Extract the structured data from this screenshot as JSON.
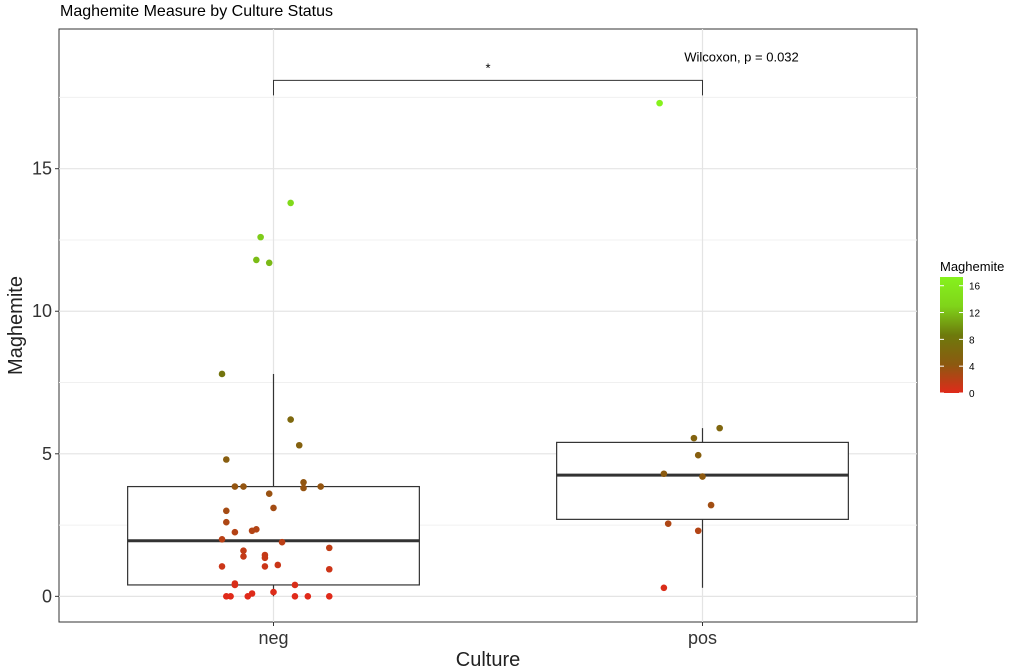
{
  "chart_data": {
    "type": "box",
    "title": "Maghemite Measure by Culture Status",
    "xlabel": "Culture",
    "ylabel": "Maghemite",
    "categories": [
      "neg",
      "pos"
    ],
    "ylim": [
      -0.9,
      19.9
    ],
    "yticks": [
      0,
      5,
      10,
      15
    ],
    "grid": true,
    "boxes": [
      {
        "category": "neg",
        "whisker_low": 0.0,
        "q1": 0.4,
        "median": 1.95,
        "q3": 3.85,
        "whisker_high": 7.8
      },
      {
        "category": "pos",
        "whisker_low": 0.3,
        "q1": 2.7,
        "median": 4.25,
        "q3": 5.4,
        "whisker_high": 5.9
      }
    ],
    "points": [
      {
        "category": "neg",
        "jitter": 0.04,
        "y": 13.8
      },
      {
        "category": "neg",
        "jitter": -0.03,
        "y": 12.6
      },
      {
        "category": "neg",
        "jitter": -0.04,
        "y": 11.8
      },
      {
        "category": "neg",
        "jitter": -0.01,
        "y": 11.7
      },
      {
        "category": "neg",
        "jitter": -0.12,
        "y": 7.8
      },
      {
        "category": "neg",
        "jitter": 0.04,
        "y": 6.2
      },
      {
        "category": "neg",
        "jitter": 0.06,
        "y": 5.3
      },
      {
        "category": "neg",
        "jitter": -0.11,
        "y": 4.8
      },
      {
        "category": "neg",
        "jitter": 0.07,
        "y": 4.0
      },
      {
        "category": "neg",
        "jitter": 0.07,
        "y": 3.8
      },
      {
        "category": "neg",
        "jitter": 0.11,
        "y": 3.85
      },
      {
        "category": "neg",
        "jitter": -0.09,
        "y": 3.85
      },
      {
        "category": "neg",
        "jitter": -0.07,
        "y": 3.85
      },
      {
        "category": "neg",
        "jitter": -0.01,
        "y": 3.6
      },
      {
        "category": "neg",
        "jitter": 0.0,
        "y": 3.1
      },
      {
        "category": "neg",
        "jitter": -0.11,
        "y": 3.0
      },
      {
        "category": "neg",
        "jitter": -0.11,
        "y": 2.6
      },
      {
        "category": "neg",
        "jitter": -0.04,
        "y": 2.35
      },
      {
        "category": "neg",
        "jitter": -0.05,
        "y": 2.3
      },
      {
        "category": "neg",
        "jitter": -0.09,
        "y": 2.25
      },
      {
        "category": "neg",
        "jitter": -0.12,
        "y": 2.0
      },
      {
        "category": "neg",
        "jitter": 0.02,
        "y": 1.9
      },
      {
        "category": "neg",
        "jitter": 0.13,
        "y": 1.7
      },
      {
        "category": "neg",
        "jitter": -0.07,
        "y": 1.6
      },
      {
        "category": "neg",
        "jitter": -0.02,
        "y": 1.45
      },
      {
        "category": "neg",
        "jitter": -0.07,
        "y": 1.4
      },
      {
        "category": "neg",
        "jitter": -0.02,
        "y": 1.35
      },
      {
        "category": "neg",
        "jitter": -0.12,
        "y": 1.05
      },
      {
        "category": "neg",
        "jitter": -0.02,
        "y": 1.05
      },
      {
        "category": "neg",
        "jitter": 0.01,
        "y": 1.1
      },
      {
        "category": "neg",
        "jitter": 0.13,
        "y": 0.95
      },
      {
        "category": "neg",
        "jitter": -0.09,
        "y": 0.45
      },
      {
        "category": "neg",
        "jitter": -0.09,
        "y": 0.4
      },
      {
        "category": "neg",
        "jitter": 0.05,
        "y": 0.4
      },
      {
        "category": "neg",
        "jitter": -0.11,
        "y": 0.0
      },
      {
        "category": "neg",
        "jitter": -0.1,
        "y": 0.0
      },
      {
        "category": "neg",
        "jitter": -0.06,
        "y": 0.0
      },
      {
        "category": "neg",
        "jitter": -0.05,
        "y": 0.1
      },
      {
        "category": "neg",
        "jitter": 0.0,
        "y": 0.15
      },
      {
        "category": "neg",
        "jitter": 0.05,
        "y": 0.0
      },
      {
        "category": "neg",
        "jitter": 0.08,
        "y": 0.0
      },
      {
        "category": "neg",
        "jitter": 0.13,
        "y": 0.0
      },
      {
        "category": "pos",
        "jitter": -0.1,
        "y": 17.3
      },
      {
        "category": "pos",
        "jitter": 0.04,
        "y": 5.9
      },
      {
        "category": "pos",
        "jitter": -0.02,
        "y": 5.55
      },
      {
        "category": "pos",
        "jitter": -0.01,
        "y": 4.95
      },
      {
        "category": "pos",
        "jitter": -0.09,
        "y": 4.3
      },
      {
        "category": "pos",
        "jitter": 0.0,
        "y": 4.2
      },
      {
        "category": "pos",
        "jitter": 0.02,
        "y": 3.2
      },
      {
        "category": "pos",
        "jitter": -0.08,
        "y": 2.55
      },
      {
        "category": "pos",
        "jitter": -0.01,
        "y": 2.3
      },
      {
        "category": "pos",
        "jitter": -0.09,
        "y": 0.3
      }
    ],
    "significance": {
      "label": "*",
      "from": "neg",
      "to": "pos",
      "y": 18.1
    },
    "test_label": "Wilcoxon, p = 0.032",
    "legend": {
      "title": "Maghemite",
      "ticks": [
        0,
        4,
        8,
        12,
        16
      ],
      "range": [
        0,
        17.3
      ],
      "colors": [
        "#e02a1a",
        "#8b5a10",
        "#6d7a0c",
        "#80d41a",
        "#86f21c"
      ],
      "placement": "right"
    }
  }
}
